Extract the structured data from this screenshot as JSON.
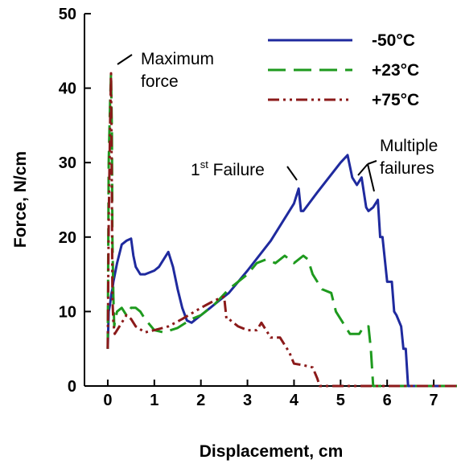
{
  "chart_data": {
    "type": "line",
    "title": "",
    "xlabel": "Displacement, cm",
    "ylabel": "Force, N/cm",
    "xlim": [
      -0.5,
      7.5
    ],
    "ylim": [
      0,
      50
    ],
    "xticks": [
      "0",
      "1",
      "2",
      "3",
      "4",
      "5",
      "6",
      "7"
    ],
    "yticks": [
      "0",
      "10",
      "20",
      "30",
      "40",
      "50"
    ],
    "grid": false,
    "legend_position": "top-right",
    "colors": {
      "s1": "#1f2a9e",
      "s2": "#1e9a1e",
      "s3": "#8b1a1a"
    },
    "annotations": {
      "max_force_line1": "Maximum",
      "max_force_line2": "force",
      "first_failure_base": "1",
      "first_failure_sup": "st",
      "first_failure_rest": " Failure",
      "multiple_line1": "Multiple",
      "multiple_line2": "failures"
    },
    "series": [
      {
        "name": "-50°C",
        "style": "solid",
        "x": [
          0,
          0.02,
          0.05,
          0.08,
          0.1,
          0.12,
          0.2,
          0.3,
          0.4,
          0.5,
          0.55,
          0.6,
          0.7,
          0.8,
          1.0,
          1.1,
          1.2,
          1.3,
          1.4,
          1.5,
          1.6,
          1.7,
          1.8,
          2.0,
          2.2,
          2.4,
          2.6,
          2.8,
          3.0,
          3.5,
          4.0,
          4.1,
          4.15,
          4.2,
          4.5,
          5.0,
          5.15,
          5.25,
          5.35,
          5.45,
          5.55,
          5.6,
          5.7,
          5.8,
          5.85,
          5.9,
          6.0,
          6.1,
          6.15,
          6.2,
          6.3,
          6.35,
          6.4,
          6.45,
          6.5,
          7.5
        ],
        "y": [
          5,
          10,
          11,
          12.5,
          13,
          14,
          16.5,
          19,
          19.5,
          19.8,
          17.5,
          16,
          15,
          15,
          15.5,
          16,
          17,
          18,
          16,
          13,
          10.5,
          8.8,
          8.5,
          9.5,
          10.5,
          11.5,
          12.5,
          14,
          15.5,
          19.5,
          24.5,
          26.5,
          23.5,
          23.5,
          26,
          30,
          31,
          28,
          27,
          28,
          24,
          23.5,
          24,
          25,
          20,
          20,
          14,
          14,
          10,
          9.5,
          8,
          5,
          5,
          0,
          0,
          0
        ]
      },
      {
        "name": "+23°C",
        "style": "dashed",
        "x": [
          0,
          0.02,
          0.05,
          0.07,
          0.09,
          0.1,
          0.12,
          0.14,
          0.16,
          0.2,
          0.3,
          0.4,
          0.5,
          0.6,
          0.7,
          0.8,
          1.0,
          1.2,
          1.5,
          1.8,
          2.0,
          2.3,
          2.6,
          3.0,
          3.2,
          3.4,
          3.6,
          3.8,
          4.0,
          4.2,
          4.3,
          4.4,
          4.6,
          4.8,
          4.9,
          5.0,
          5.2,
          5.4,
          5.5,
          5.6,
          5.65,
          5.7,
          7.5
        ],
        "y": [
          5,
          30,
          38,
          42,
          34,
          20,
          12,
          8,
          9,
          10,
          10.5,
          9.5,
          10.5,
          10.5,
          10,
          9,
          7.5,
          7.2,
          7.8,
          9,
          9.5,
          11,
          13,
          15,
          16.5,
          17,
          16.5,
          17.5,
          16.5,
          17.5,
          17,
          15,
          13,
          12.5,
          10,
          9,
          7,
          7,
          8,
          8,
          5,
          0,
          0
        ]
      },
      {
        "name": "+75°C",
        "style": "dashdot",
        "x": [
          0,
          0.02,
          0.05,
          0.07,
          0.09,
          0.1,
          0.12,
          0.15,
          0.2,
          0.3,
          0.4,
          0.5,
          0.6,
          0.8,
          1.0,
          1.3,
          1.6,
          2.0,
          2.3,
          2.5,
          2.55,
          2.6,
          2.7,
          2.8,
          3.0,
          3.2,
          3.3,
          3.5,
          3.7,
          3.9,
          4.0,
          4.2,
          4.4,
          4.5,
          4.55,
          4.6,
          7.5
        ],
        "y": [
          5,
          22,
          35,
          42,
          25,
          12,
          8.5,
          7,
          7.5,
          8.5,
          9.5,
          9,
          8,
          7.2,
          7.5,
          8,
          9,
          10.5,
          11.5,
          12,
          9,
          9,
          8.5,
          8,
          7.5,
          7.5,
          8.5,
          6.5,
          6.5,
          4.5,
          3,
          2.8,
          2.5,
          1,
          0,
          0,
          0
        ]
      }
    ]
  }
}
